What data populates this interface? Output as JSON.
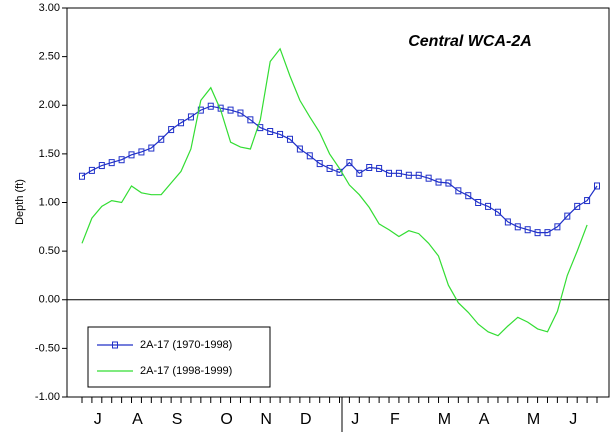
{
  "chart_data": {
    "type": "line",
    "title": "Central WCA-2A",
    "y_label": "Depth (ft)",
    "categories": [
      null,
      null,
      "J",
      null,
      null,
      null,
      "A",
      null,
      null,
      null,
      "S",
      null,
      null,
      null,
      null,
      "O",
      null,
      null,
      null,
      "N",
      null,
      null,
      null,
      "D",
      null,
      null,
      null,
      null,
      "J",
      null,
      null,
      null,
      "F",
      null,
      null,
      null,
      null,
      "M",
      null,
      null,
      null,
      "A",
      null,
      null,
      null,
      null,
      "M",
      null,
      null,
      null,
      "J",
      null,
      null
    ],
    "series": [
      {
        "name": "2A-17 (1970-1998)",
        "color": "#2030c8",
        "marker": true,
        "values": [
          1.27,
          1.33,
          1.38,
          1.41,
          1.44,
          1.49,
          1.52,
          1.56,
          1.65,
          1.75,
          1.82,
          1.88,
          1.95,
          1.99,
          1.97,
          1.95,
          1.92,
          1.85,
          1.77,
          1.73,
          1.7,
          1.65,
          1.55,
          1.48,
          1.4,
          1.35,
          1.31,
          1.41,
          1.3,
          1.36,
          1.35,
          1.3,
          1.3,
          1.28,
          1.28,
          1.25,
          1.21,
          1.2,
          1.12,
          1.07,
          1.0,
          0.96,
          0.9,
          0.8,
          0.75,
          0.72,
          0.69,
          0.69,
          0.75,
          0.86,
          0.96,
          1.02,
          1.17
        ]
      },
      {
        "name": "2A-17 (1998-1999)",
        "color": "#33dd33",
        "marker": false,
        "values": [
          0.58,
          0.84,
          0.96,
          1.02,
          1.0,
          1.17,
          1.1,
          1.08,
          1.08,
          1.2,
          1.32,
          1.55,
          2.05,
          2.18,
          1.95,
          1.62,
          1.57,
          1.55,
          1.85,
          2.45,
          2.58,
          2.3,
          2.05,
          1.88,
          1.72,
          1.5,
          1.35,
          1.18,
          1.08,
          0.95,
          0.78,
          0.72,
          0.65,
          0.71,
          0.68,
          0.58,
          0.45,
          0.15,
          -0.03,
          -0.13,
          -0.25,
          -0.33,
          -0.37,
          -0.27,
          -0.18,
          -0.23,
          -0.3,
          -0.33,
          -0.12,
          0.25,
          0.5,
          0.77,
          null
        ]
      }
    ],
    "ylim": [
      -1,
      3
    ],
    "yticks": [
      {
        "value": -1,
        "label": "-1.00"
      },
      {
        "value": -0.5,
        "label": "-0.50"
      },
      {
        "value": 0,
        "label": "0.00"
      },
      {
        "value": 0.5,
        "label": "0.50"
      },
      {
        "value": 1,
        "label": "1.00"
      },
      {
        "value": 1.5,
        "label": "1.50"
      },
      {
        "value": 2,
        "label": "2.00"
      },
      {
        "value": 2.5,
        "label": "2.50"
      },
      {
        "value": 3,
        "label": "3.00"
      }
    ],
    "zero_line": true
  }
}
